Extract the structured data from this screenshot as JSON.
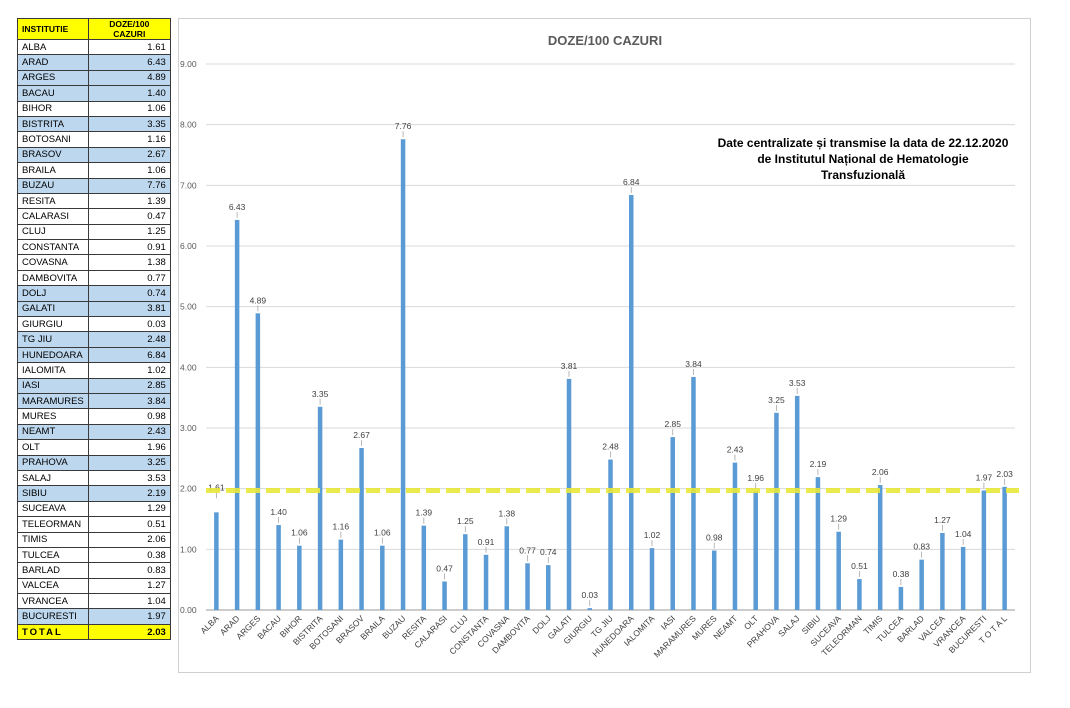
{
  "table": {
    "header": {
      "col1": "INSTITUTIE",
      "col2": "DOZE/100 CAZURI"
    },
    "rows": [
      {
        "name": "ALBA",
        "value": "1.61",
        "highlight": false
      },
      {
        "name": "ARAD",
        "value": "6.43",
        "highlight": true
      },
      {
        "name": "ARGES",
        "value": "4.89",
        "highlight": true
      },
      {
        "name": "BACAU",
        "value": "1.40",
        "highlight": true
      },
      {
        "name": "BIHOR",
        "value": "1.06",
        "highlight": false
      },
      {
        "name": "BISTRITA",
        "value": "3.35",
        "highlight": true
      },
      {
        "name": "BOTOSANI",
        "value": "1.16",
        "highlight": false
      },
      {
        "name": "BRASOV",
        "value": "2.67",
        "highlight": true
      },
      {
        "name": "BRAILA",
        "value": "1.06",
        "highlight": false
      },
      {
        "name": "BUZAU",
        "value": "7.76",
        "highlight": true
      },
      {
        "name": "RESITA",
        "value": "1.39",
        "highlight": false
      },
      {
        "name": "CALARASI",
        "value": "0.47",
        "highlight": false
      },
      {
        "name": "CLUJ",
        "value": "1.25",
        "highlight": false
      },
      {
        "name": "CONSTANTA",
        "value": "0.91",
        "highlight": false
      },
      {
        "name": "COVASNA",
        "value": "1.38",
        "highlight": false
      },
      {
        "name": "DAMBOVITA",
        "value": "0.77",
        "highlight": false
      },
      {
        "name": "DOLJ",
        "value": "0.74",
        "highlight": true
      },
      {
        "name": "GALATI",
        "value": "3.81",
        "highlight": true
      },
      {
        "name": "GIURGIU",
        "value": "0.03",
        "highlight": false
      },
      {
        "name": "TG JIU",
        "value": "2.48",
        "highlight": true
      },
      {
        "name": "HUNEDOARA",
        "value": "6.84",
        "highlight": true
      },
      {
        "name": "IALOMITA",
        "value": "1.02",
        "highlight": false
      },
      {
        "name": "IASI",
        "value": "2.85",
        "highlight": true
      },
      {
        "name": "MARAMURES",
        "value": "3.84",
        "highlight": true
      },
      {
        "name": "MURES",
        "value": "0.98",
        "highlight": false
      },
      {
        "name": "NEAMT",
        "value": "2.43",
        "highlight": true
      },
      {
        "name": "OLT",
        "value": "1.96",
        "highlight": false
      },
      {
        "name": "PRAHOVA",
        "value": "3.25",
        "highlight": true
      },
      {
        "name": "SALAJ",
        "value": "3.53",
        "highlight": false
      },
      {
        "name": "SIBIU",
        "value": "2.19",
        "highlight": true
      },
      {
        "name": "SUCEAVA",
        "value": "1.29",
        "highlight": false
      },
      {
        "name": "TELEORMAN",
        "value": "0.51",
        "highlight": false
      },
      {
        "name": "TIMIS",
        "value": "2.06",
        "highlight": false
      },
      {
        "name": "TULCEA",
        "value": "0.38",
        "highlight": false
      },
      {
        "name": "BARLAD",
        "value": "0.83",
        "highlight": false
      },
      {
        "name": "VALCEA",
        "value": "1.27",
        "highlight": false
      },
      {
        "name": "VRANCEA",
        "value": "1.04",
        "highlight": false
      },
      {
        "name": "BUCURESTI",
        "value": "1.97",
        "highlight": true
      }
    ],
    "total": {
      "name": "TOTAL",
      "value": "2.03"
    }
  },
  "chart_data": {
    "type": "bar",
    "title": "DOZE/100 CAZURI",
    "annotation": [
      "Date centralizate și transmise la data de 22.12.2020",
      "de Institutul Național de Hematologie",
      "Transfuzională"
    ],
    "categories": [
      "ALBA",
      "ARAD",
      "ARGES",
      "BACAU",
      "BIHOR",
      "BISTRITA",
      "BOTOSANI",
      "BRASOV",
      "BRAILA",
      "BUZAU",
      "RESITA",
      "CALARASI",
      "CLUJ",
      "CONSTANTA",
      "COVASNA",
      "DAMBOVITA",
      "DOLJ",
      "GALATI",
      "GIURGIU",
      "TG JIU",
      "HUNEDOARA",
      "IALOMITA",
      "IASI",
      "MARAMURES",
      "MURES",
      "NEAMT",
      "OLT",
      "PRAHOVA",
      "SALAJ",
      "SIBIU",
      "SUCEAVA",
      "TELEORMAN",
      "TIMIS",
      "TULCEA",
      "BARLAD",
      "VALCEA",
      "VRANCEA",
      "BUCURESTI",
      "T O T A L"
    ],
    "values": [
      1.61,
      6.43,
      4.89,
      1.4,
      1.06,
      3.35,
      1.16,
      2.67,
      1.06,
      7.76,
      1.39,
      0.47,
      1.25,
      0.91,
      1.38,
      0.77,
      0.74,
      3.81,
      0.03,
      2.48,
      6.84,
      1.02,
      2.85,
      3.84,
      0.98,
      2.43,
      1.96,
      3.25,
      3.53,
      2.19,
      1.29,
      0.51,
      2.06,
      0.38,
      0.83,
      1.27,
      1.04,
      1.97,
      2.03
    ],
    "value_labels": [
      "1.61",
      "6.43",
      "4.89",
      "1.40",
      "1.06",
      "3.35",
      "1.16",
      "2.67",
      "1.06",
      "7.76",
      "1.39",
      "0.47",
      "1.25",
      "0.91",
      "1.38",
      "0.77",
      "0.74",
      "3.81",
      "0.03",
      "2.48",
      "6.84",
      "1.02",
      "2.85",
      "3.84",
      "0.98",
      "2.43",
      "1.96",
      "3.25",
      "3.53",
      "2.19",
      "1.29",
      "0.51",
      "2.06",
      "0.38",
      "0.83",
      "1.27",
      "1.04",
      "1.97",
      "2.03"
    ],
    "yticks": [
      "0.00",
      "1.00",
      "2.00",
      "3.00",
      "4.00",
      "5.00",
      "6.00",
      "7.00",
      "8.00",
      "9.00"
    ],
    "ylim": [
      0,
      9
    ],
    "reference_line": 1.97,
    "bar_color": "#5b9bd5",
    "reference_color": "#e8e83a",
    "grid": true
  }
}
